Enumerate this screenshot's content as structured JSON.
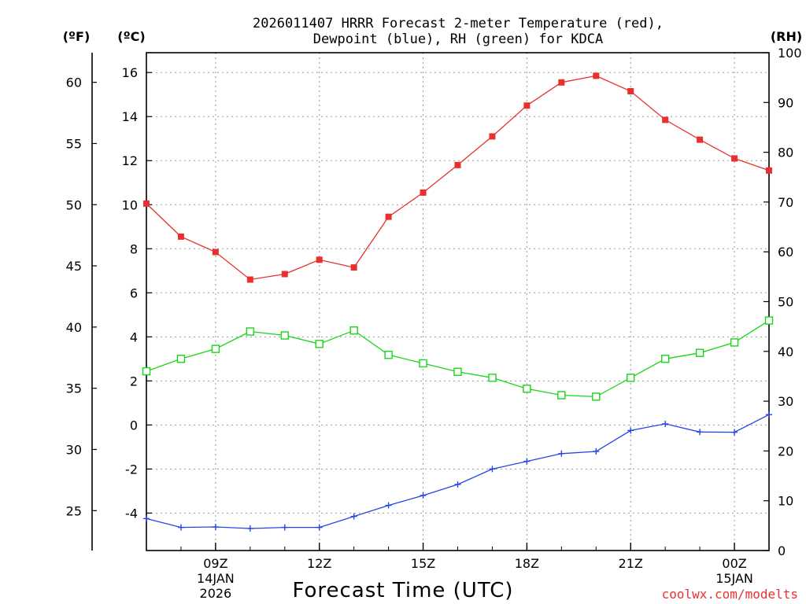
{
  "header": {
    "title_line1": "2026011407 HRRR Forecast 2-meter Temperature (red),",
    "title_line2": "Dewpoint (blue), RH (green) for KDCA"
  },
  "units": {
    "fahrenheit": "(ºF)",
    "celsius": "(ºC)",
    "rh": "(RH)"
  },
  "footer": {
    "credit": "coolwx.com/modelts",
    "credit_color": "#e8312f"
  },
  "chart_data": {
    "type": "line",
    "title": "2026011407 HRRR Forecast 2-meter Temperature (red), Dewpoint (blue), RH (green) for KDCA",
    "xlabel": "Forecast Time (UTC)",
    "x_hours": [
      7,
      8,
      9,
      10,
      11,
      12,
      13,
      14,
      15,
      16,
      17,
      18,
      19,
      20,
      21,
      22,
      23,
      24,
      25
    ],
    "xlim": [
      7,
      25
    ],
    "x_ticks": [
      {
        "hour": 9,
        "label": "09Z",
        "date1": "14JAN",
        "date2": "2026"
      },
      {
        "hour": 12,
        "label": "12Z",
        "date1": "",
        "date2": ""
      },
      {
        "hour": 15,
        "label": "15Z",
        "date1": "",
        "date2": ""
      },
      {
        "hour": 18,
        "label": "18Z",
        "date1": "",
        "date2": ""
      },
      {
        "hour": 21,
        "label": "21Z",
        "date1": "",
        "date2": ""
      },
      {
        "hour": 24,
        "label": "00Z",
        "date1": "15JAN",
        "date2": ""
      }
    ],
    "y_celsius_lim": [
      -5.7,
      16.9
    ],
    "y_celsius_ticks": [
      "-4",
      "-2",
      "0",
      "2",
      "4",
      "6",
      "8",
      "10",
      "12",
      "14",
      "16"
    ],
    "y_fahrenheit_ticks": [
      "25",
      "30",
      "35",
      "40",
      "45",
      "50",
      "55",
      "60"
    ],
    "y_rh_lim": [
      0,
      100
    ],
    "y_rh_ticks": [
      "0",
      "10",
      "20",
      "30",
      "40",
      "50",
      "60",
      "70",
      "80",
      "90",
      "100"
    ],
    "grid": true,
    "series": [
      {
        "name": "Temperature",
        "axis": "celsius",
        "color": "#e8312f",
        "marker": "filled-square",
        "values": [
          10.05,
          8.55,
          7.85,
          6.6,
          6.85,
          7.5,
          7.15,
          9.45,
          10.55,
          11.8,
          13.1,
          14.5,
          15.55,
          15.85,
          15.15,
          13.85,
          12.95,
          12.1,
          11.55
        ]
      },
      {
        "name": "Dewpoint",
        "axis": "celsius",
        "color": "#2545e6",
        "marker": "plus",
        "values": [
          -4.25,
          -4.65,
          -4.63,
          -4.7,
          -4.65,
          -4.65,
          -4.15,
          -3.65,
          -3.2,
          -2.7,
          -2.0,
          -1.65,
          -1.3,
          -1.2,
          -0.25,
          0.05,
          -0.32,
          -0.33,
          0.47
        ]
      },
      {
        "name": "RH",
        "axis": "rh",
        "color": "#19d619",
        "marker": "open-square",
        "values": [
          36.0,
          38.5,
          40.5,
          44.0,
          43.2,
          41.5,
          44.2,
          39.3,
          37.6,
          35.9,
          34.7,
          32.5,
          31.2,
          30.9,
          34.7,
          38.5,
          39.7,
          41.8,
          46.2
        ]
      }
    ]
  }
}
